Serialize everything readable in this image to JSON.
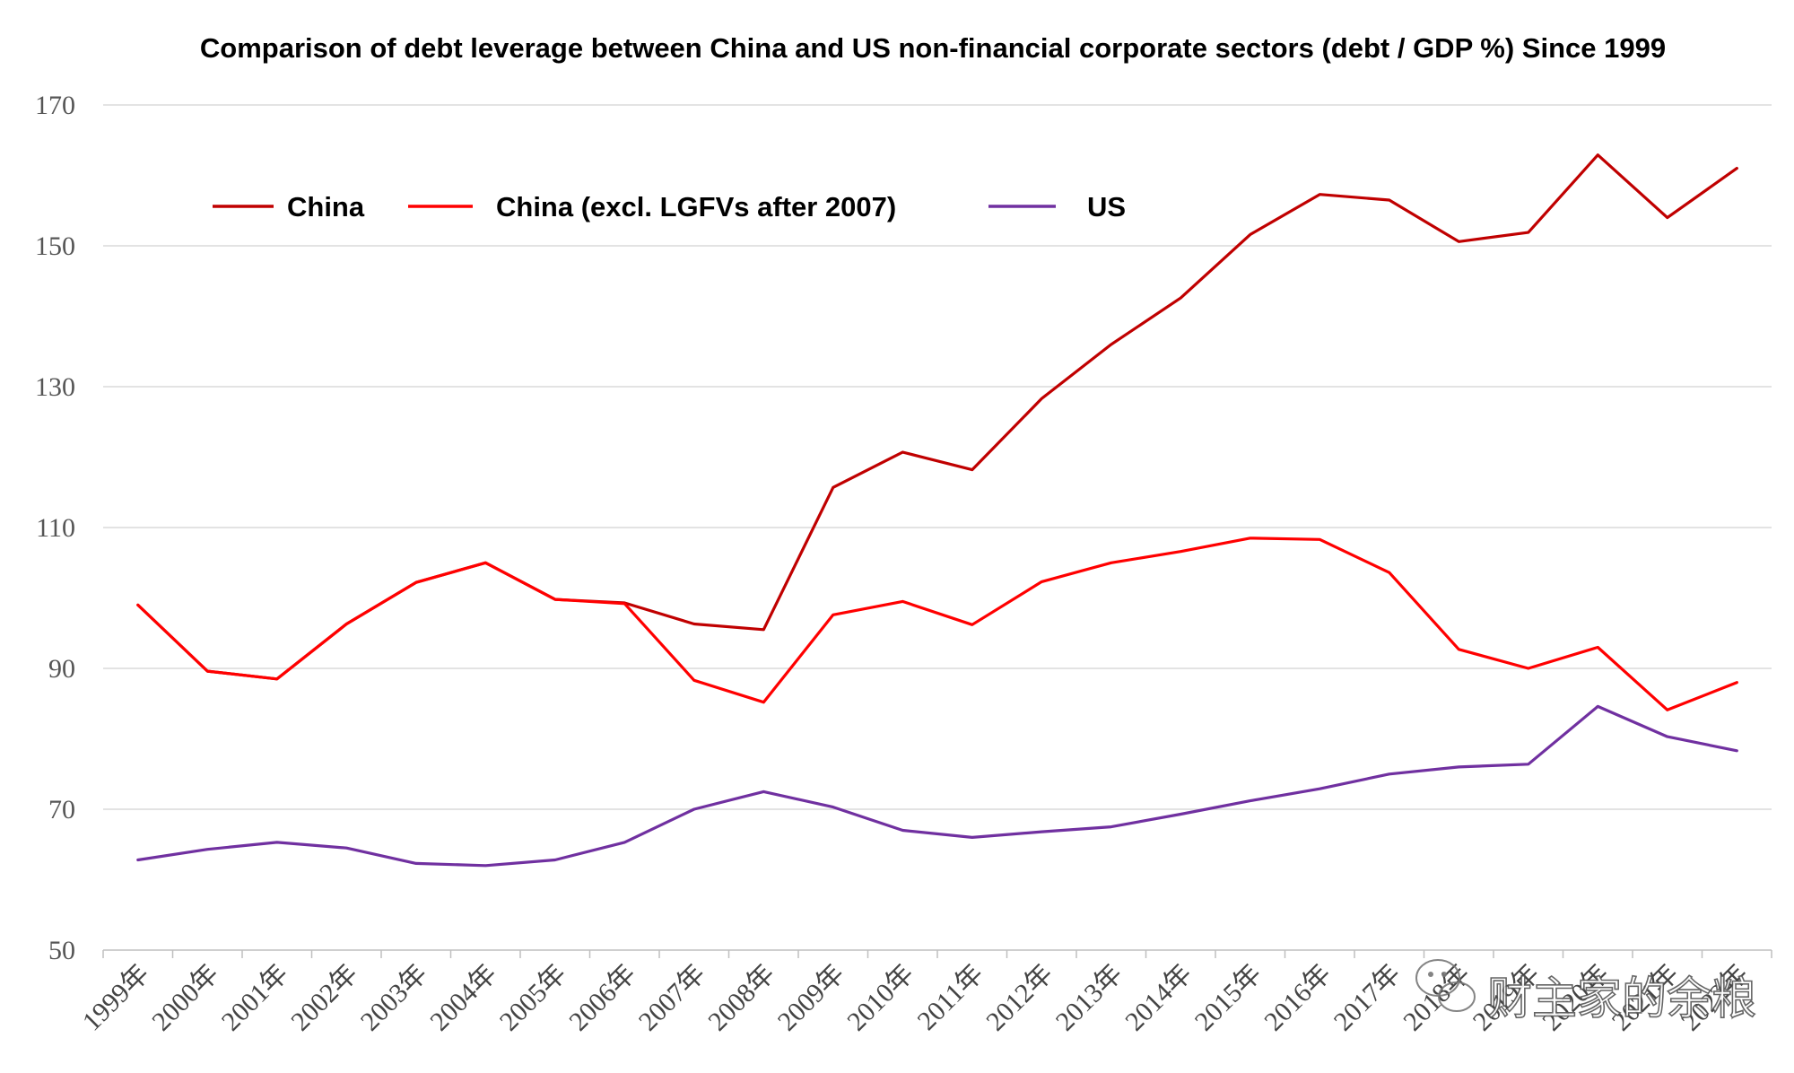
{
  "chart_data": {
    "type": "line",
    "title": "Comparison of debt leverage between China and US non-financial corporate sectors (debt / GDP %) Since 1999",
    "xlabel": "",
    "ylabel": "",
    "categories": [
      "1999年",
      "2000年",
      "2001年",
      "2002年",
      "2003年",
      "2004年",
      "2005年",
      "2006年",
      "2007年",
      "2008年",
      "2009年",
      "2010年",
      "2011年",
      "2012年",
      "2013年",
      "2014年",
      "2015年",
      "2016年",
      "2017年",
      "2018年",
      "2019年",
      "2020年",
      "2021年",
      "2022年"
    ],
    "yticks": [
      50,
      70,
      90,
      110,
      130,
      150,
      170
    ],
    "ylim": [
      50,
      170
    ],
    "grid": true,
    "legend_position": "top-left",
    "series": [
      {
        "name": "China",
        "color": "#c00000",
        "values": [
          99.0,
          89.6,
          88.5,
          96.3,
          102.2,
          105.0,
          99.8,
          99.3,
          96.3,
          95.5,
          115.7,
          120.7,
          118.2,
          128.3,
          136.0,
          142.6,
          151.6,
          157.3,
          156.5,
          150.6,
          151.9,
          162.9,
          154.0,
          161.0
        ]
      },
      {
        "name": "China (excl. LGFVs after 2007)",
        "color": "#ff0000",
        "values": [
          99.0,
          89.6,
          88.5,
          96.3,
          102.2,
          105.0,
          99.8,
          99.2,
          88.3,
          85.2,
          97.6,
          99.5,
          96.2,
          102.3,
          105.0,
          106.6,
          108.5,
          108.3,
          103.6,
          92.7,
          90.0,
          93.0,
          84.1,
          88.0
        ]
      },
      {
        "name": "US",
        "color": "#7030a0",
        "values": [
          62.8,
          64.3,
          65.3,
          64.5,
          62.3,
          62.0,
          62.8,
          65.3,
          70.0,
          72.5,
          70.3,
          67.0,
          66.0,
          66.8,
          67.5,
          69.3,
          71.2,
          72.9,
          75.0,
          76.0,
          76.4,
          84.6,
          80.3,
          78.3
        ]
      }
    ]
  },
  "watermark": {
    "text": "财主家的余粮",
    "icon": "wechat-icon"
  }
}
